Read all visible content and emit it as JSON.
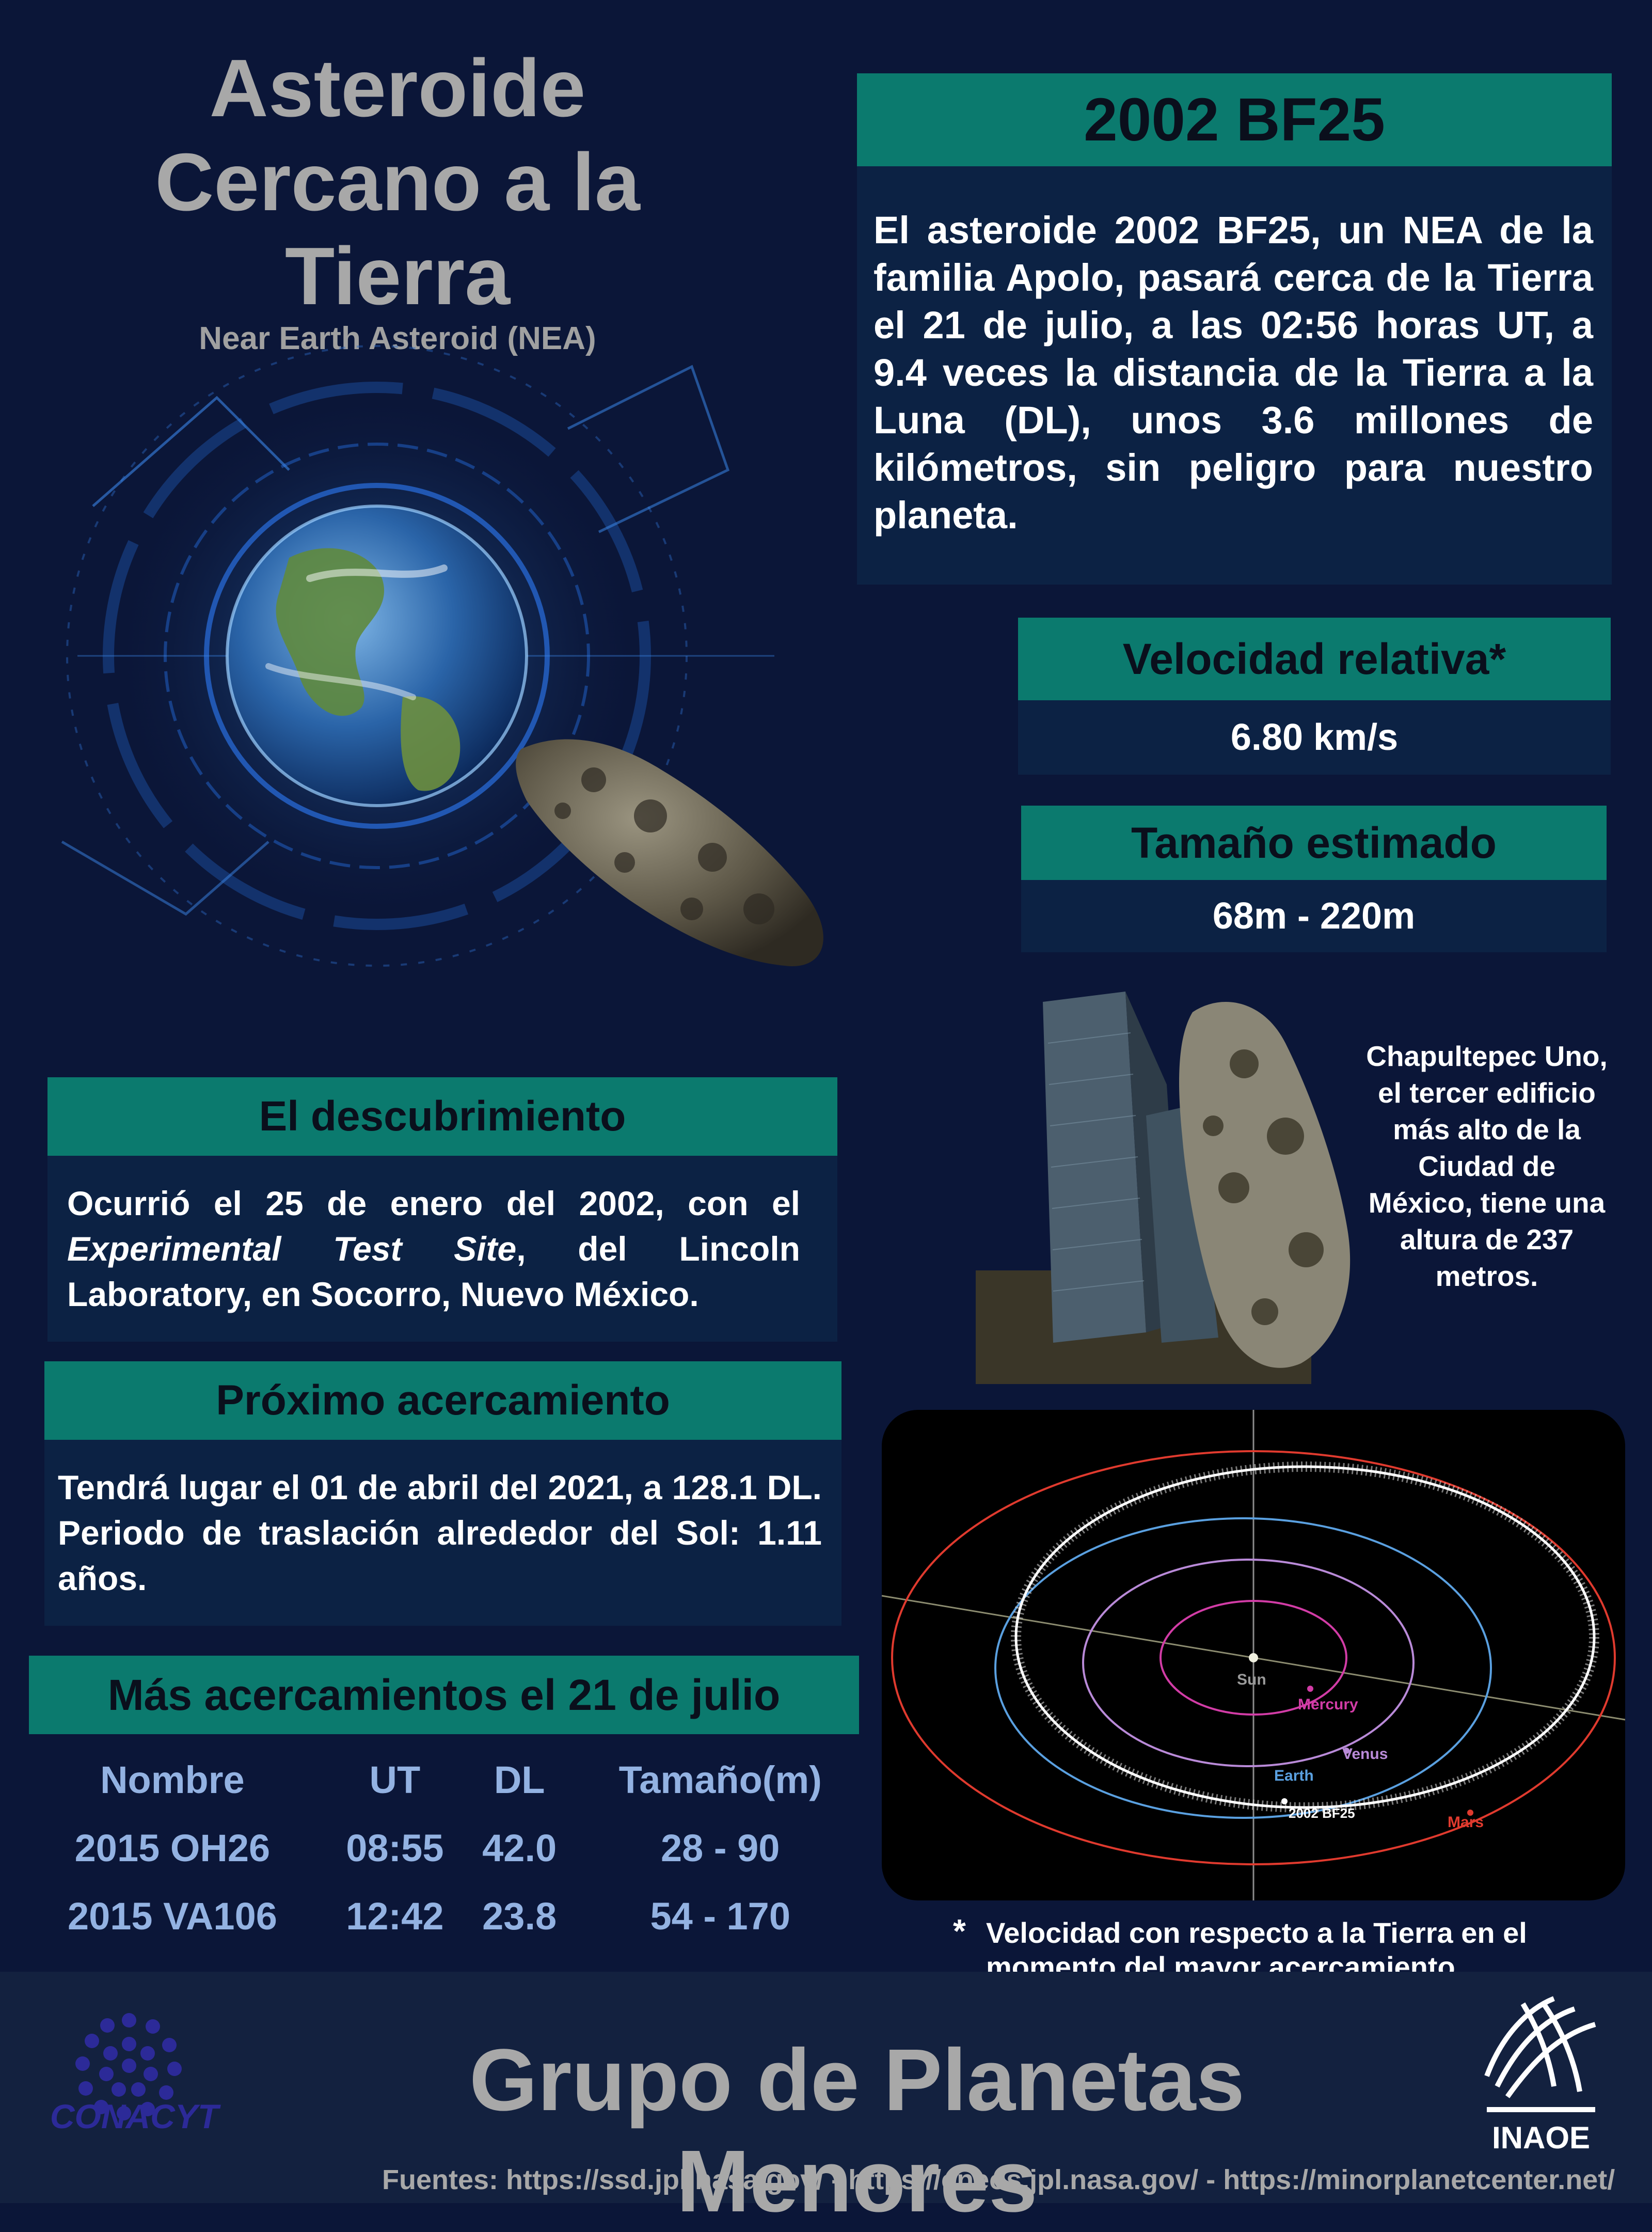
{
  "header": {
    "title_lines": [
      "Asteroide",
      "Cercano a la",
      "Tierra"
    ],
    "subtitle": "Near Earth Asteroid (NEA)"
  },
  "asteroid": {
    "name": "2002 BF25",
    "description": "El  asteroide 2002 BF25, un NEA de la familia Apolo, pasará cerca de la Tierra el 21 de julio, a las 02:56 horas UT, a 9.4 veces la distancia de la Tierra a la Luna (DL), unos 3.6 millones de kilómetros, sin peligro para nuestro planeta."
  },
  "velocity": {
    "label": "Velocidad relativa*",
    "value": "6.80 km/s"
  },
  "size": {
    "label": "Tamaño estimado",
    "value": "68m - 220m"
  },
  "comparison": {
    "caption": "Chapultepec Uno, el tercer edificio más alto de la Ciudad de México, tiene una altura de 237 metros."
  },
  "discovery": {
    "heading": "El descubrimiento",
    "text_before": "Ocurrió el 25 de enero del 2002, con el ",
    "text_italic": "Experimental Test Site",
    "text_after": ", del Lincoln Laboratory, en Socorro, Nuevo México."
  },
  "next_approach": {
    "heading": "Próximo acercamiento",
    "text": "Tendrá lugar el 01 de abril del 2021, a 128.1 DL. Periodo de traslación alrededor del Sol: 1.11 años."
  },
  "more_approaches": {
    "heading": "Más acercamientos el 21 de julio",
    "columns": [
      "Nombre",
      "UT",
      "DL",
      "Tamaño(m)"
    ],
    "rows": [
      [
        "2015 OH26",
        "08:55",
        "42.0",
        "28 - 90"
      ],
      [
        "2015 VA106",
        "12:42",
        "23.8",
        "54 - 170"
      ]
    ]
  },
  "orbit_diagram": {
    "labels": {
      "sun": "Sun",
      "mercury": "Mercury",
      "venus": "Venus",
      "earth": "Earth",
      "mars": "Mars",
      "asteroid": "2002 BF25"
    },
    "colors": {
      "mercury": "#d23ca6",
      "venus": "#b98ad8",
      "earth": "#5aa0e0",
      "mars": "#e03a2e",
      "asteroid_orbit": "#dcdcdc"
    }
  },
  "footnote": {
    "star": "*",
    "text": "Velocidad con respecto a la Tierra en el momento del mayor acercamiento"
  },
  "footer": {
    "title": "Grupo de Planetas Menores",
    "sources": "Fuentes: https://ssd.jpl.nasa.gov/ - https://cneos.jpl.nasa.gov/ -  https://minorplanetcenter.net/",
    "logo_left_text": "CONACYT",
    "logo_right_text": "INAOE"
  },
  "colors": {
    "background": "#0b1638",
    "teal_bar": "#0b7a6e",
    "navy_box": "#0c2244",
    "title_gray": "#a8a8a8",
    "table_text": "#93b2e2"
  }
}
